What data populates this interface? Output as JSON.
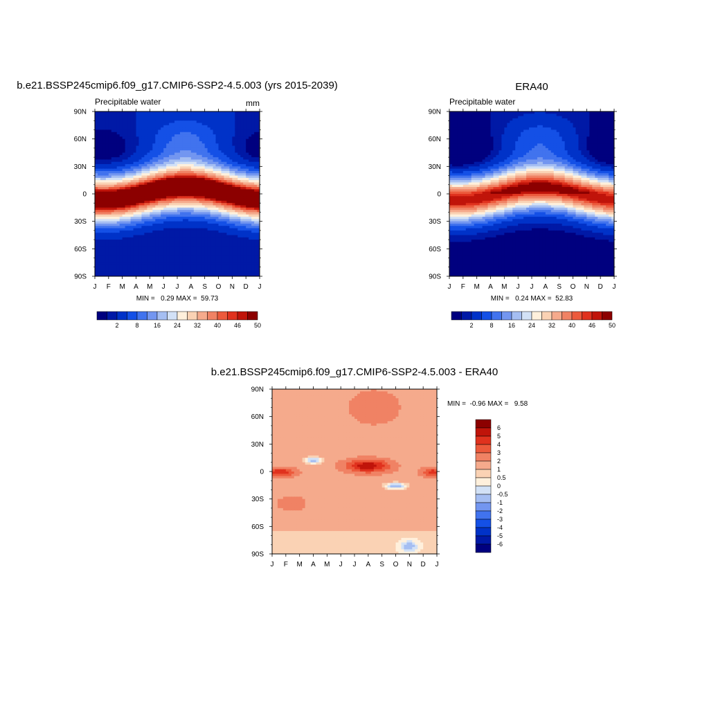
{
  "chart_data": [
    {
      "type": "heatmap",
      "title": "b.e21.BSSP245cmip6.f09_g17.CMIP6-SSP2-4.5.003 (yrs 2015-2039)",
      "left_label": "Precipitable water",
      "right_label": "mm",
      "months": [
        "J",
        "F",
        "M",
        "A",
        "M",
        "J",
        "J",
        "A",
        "S",
        "O",
        "N",
        "D",
        "J"
      ],
      "lat_ticks": [
        "90N",
        "60N",
        "30N",
        "0",
        "30S",
        "60S",
        "90S"
      ],
      "stats": "MIN =   0.29 MAX =  59.73",
      "min": 0.29,
      "max": 59.73,
      "levels": [
        0,
        2,
        4,
        8,
        12,
        16,
        20,
        24,
        28,
        32,
        36,
        40,
        44,
        46,
        48,
        50,
        60
      ],
      "colorbar_labels": [
        "2",
        "8",
        "16",
        "24",
        "32",
        "40",
        "46",
        "50"
      ],
      "field": {
        "eq_amp": 55,
        "eq_shift": 7,
        "nh_pole": 4,
        "sh_pole": 2,
        "width": 24
      }
    },
    {
      "type": "heatmap",
      "title": "ERA40",
      "left_label": "Precipitable water",
      "right_label": "",
      "months": [
        "J",
        "F",
        "M",
        "A",
        "M",
        "J",
        "J",
        "A",
        "S",
        "O",
        "N",
        "D",
        "J"
      ],
      "lat_ticks": [
        "90N",
        "60N",
        "30N",
        "0",
        "30S",
        "60S",
        "90S"
      ],
      "stats": "MIN =   0.24 MAX =  52.83",
      "min": 0.24,
      "max": 52.83,
      "levels": [
        0,
        2,
        4,
        8,
        12,
        16,
        20,
        24,
        28,
        32,
        36,
        40,
        44,
        46,
        48,
        50,
        60
      ],
      "colorbar_labels": [
        "2",
        "8",
        "16",
        "24",
        "32",
        "40",
        "46",
        "50"
      ],
      "field": {
        "eq_amp": 49,
        "eq_shift": 7,
        "nh_pole": 2,
        "sh_pole": 1,
        "width": 23
      }
    },
    {
      "type": "heatmap",
      "title": "b.e21.BSSP245cmip6.f09_g17.CMIP6-SSP2-4.5.003 - ERA40",
      "months": [
        "J",
        "F",
        "M",
        "A",
        "M",
        "J",
        "J",
        "A",
        "S",
        "O",
        "N",
        "D",
        "J"
      ],
      "lat_ticks": [
        "90N",
        "60N",
        "30N",
        "0",
        "30S",
        "60S",
        "90S"
      ],
      "stats": "MIN =  -0.96 MAX =   9.58",
      "min": -0.96,
      "max": 9.58,
      "levels": [
        -10,
        -6,
        -5,
        -4,
        -3,
        -2,
        -1,
        -0.5,
        0,
        0.5,
        1,
        2,
        3,
        4,
        5,
        6,
        10
      ],
      "colorbar_labels": [
        "6",
        "5",
        "4",
        "3",
        "2",
        "1",
        "0.5",
        "0",
        "-0.5",
        "-1",
        "-2",
        "-3",
        "-4",
        "-5",
        "-6"
      ]
    }
  ],
  "palette_diverging": [
    "#00007f",
    "#0019a6",
    "#0032c8",
    "#1450e6",
    "#4173ee",
    "#7396f0",
    "#a5bef2",
    "#d2e1f6",
    "#fff0dc",
    "#fad2b4",
    "#f5aa8c",
    "#f08264",
    "#ec5a3c",
    "#e0321e",
    "#c0140a",
    "#8c0000"
  ]
}
